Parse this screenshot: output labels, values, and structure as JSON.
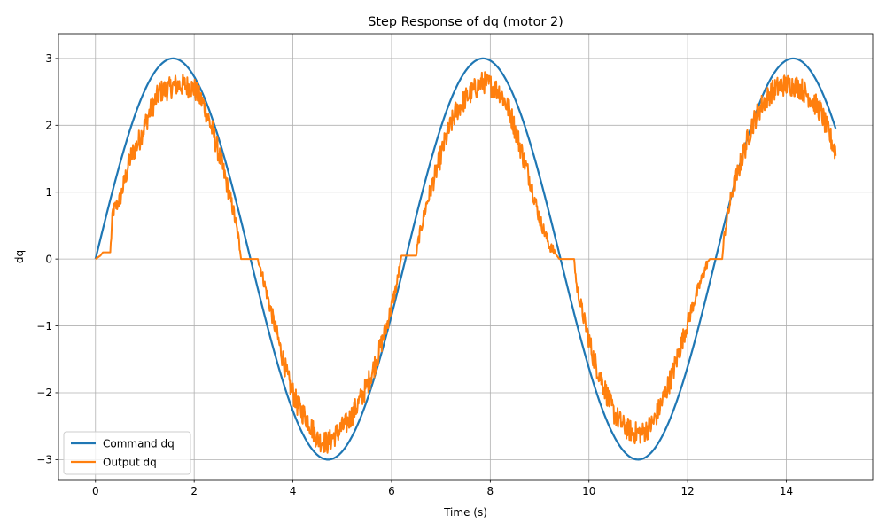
{
  "chart_data": {
    "type": "line",
    "title": "Step Response of dq (motor 2)",
    "xlabel": "Time (s)",
    "ylabel": "dq",
    "xlim": [
      -0.75,
      15.75
    ],
    "ylim": [
      -3.3,
      3.37
    ],
    "xticks": [
      0,
      2,
      4,
      6,
      8,
      10,
      12,
      14
    ],
    "xtick_labels": [
      "0",
      "2",
      "4",
      "6",
      "8",
      "10",
      "12",
      "14"
    ],
    "yticks": [
      -3,
      -2,
      -1,
      0,
      1,
      2,
      3
    ],
    "ytick_labels": [
      "−3",
      "−2",
      "−1",
      "0",
      "1",
      "2",
      "3"
    ],
    "grid": true,
    "legend_position": "lower-left",
    "series": [
      {
        "name": "Command dq",
        "color": "#1f77b4",
        "function": "3*sin(t)",
        "x_range": [
          0,
          15
        ]
      },
      {
        "name": "Output dq",
        "color": "#ff7f0e",
        "x": [
          0,
          0.1,
          0.15,
          0.25,
          0.3,
          0.35,
          0.5,
          0.7,
          0.9,
          1.1,
          1.3,
          1.5,
          1.6,
          1.8,
          2.0,
          2.2,
          2.4,
          2.6,
          2.8,
          2.9,
          2.95,
          3.1,
          3.25,
          3.3,
          3.5,
          3.7,
          3.9,
          4.1,
          4.3,
          4.5,
          4.7,
          4.9,
          5.1,
          5.3,
          5.5,
          5.7,
          5.9,
          6.1,
          6.2,
          6.25,
          6.5,
          6.55,
          6.7,
          6.9,
          7.1,
          7.3,
          7.5,
          7.7,
          7.85,
          8.0,
          8.2,
          8.4,
          8.6,
          8.8,
          9.0,
          9.2,
          9.35,
          9.4,
          9.7,
          9.75,
          9.9,
          10.1,
          10.3,
          10.5,
          10.7,
          10.9,
          11.1,
          11.3,
          11.5,
          11.7,
          11.9,
          12.1,
          12.4,
          12.45,
          12.7,
          12.75,
          12.9,
          13.1,
          13.3,
          13.5,
          13.7,
          13.9,
          14.15,
          14.3,
          14.5,
          14.7,
          14.9,
          15.0
        ],
        "y": [
          0,
          0.05,
          0.1,
          0.1,
          0.1,
          0.7,
          0.9,
          1.5,
          1.8,
          2.2,
          2.5,
          2.55,
          2.6,
          2.6,
          2.55,
          2.3,
          1.85,
          1.3,
          0.7,
          0.3,
          0,
          0,
          0,
          0,
          -0.6,
          -1.2,
          -1.8,
          -2.2,
          -2.4,
          -2.7,
          -2.75,
          -2.6,
          -2.45,
          -2.2,
          -1.9,
          -1.5,
          -1.0,
          -0.4,
          0.05,
          0.05,
          0.05,
          0.3,
          0.8,
          1.3,
          1.8,
          2.2,
          2.4,
          2.55,
          2.65,
          2.6,
          2.5,
          2.2,
          1.7,
          1.2,
          0.6,
          0.2,
          0.05,
          0,
          0,
          -0.4,
          -0.9,
          -1.5,
          -1.9,
          -2.3,
          -2.5,
          -2.6,
          -2.6,
          -2.45,
          -2.1,
          -1.7,
          -1.2,
          -0.7,
          -0.05,
          0,
          0,
          0.4,
          1.0,
          1.5,
          2.0,
          2.3,
          2.5,
          2.6,
          2.6,
          2.55,
          2.4,
          2.2,
          1.8,
          1.6
        ],
        "noise_amplitude": 0.17
      }
    ]
  }
}
